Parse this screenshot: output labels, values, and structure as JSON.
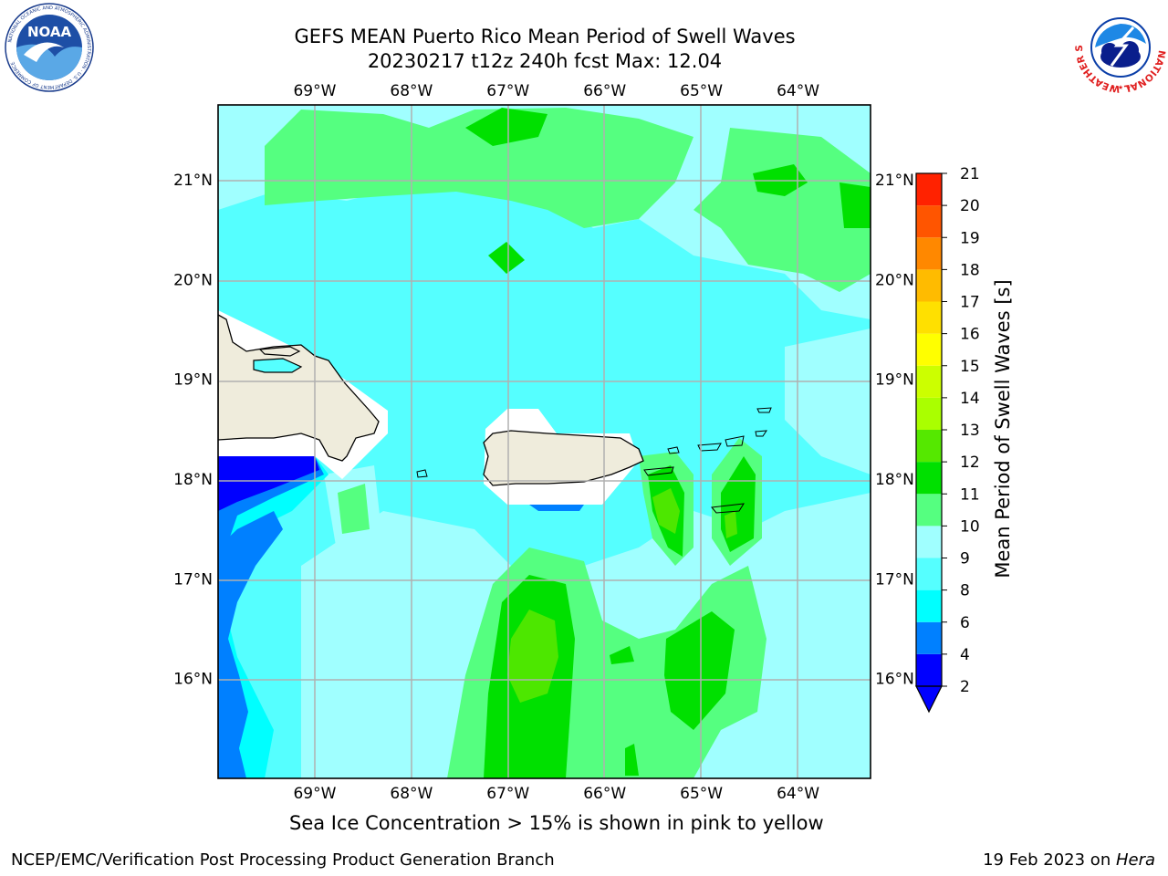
{
  "title": {
    "line1": "GEFS MEAN Puerto Rico Mean Period of Swell Waves",
    "line2": "20230217 t12z 240h fcst   Max: 12.04"
  },
  "axes": {
    "lon_labels": [
      "69°W",
      "68°W",
      "67°W",
      "66°W",
      "65°W",
      "64°W"
    ],
    "lat_labels": [
      "21°N",
      "20°N",
      "19°N",
      "18°N",
      "17°N",
      "16°N"
    ],
    "lon_values": [
      -69,
      -68,
      -67,
      -66,
      -65,
      -64
    ],
    "lat_values": [
      21,
      20,
      19,
      18,
      17,
      16
    ],
    "lon_range": [
      -70,
      -63.25
    ],
    "lat_range": [
      15,
      21.75
    ]
  },
  "colorbar": {
    "label": "Mean Period of Swell Waves [s]",
    "ticks": [
      "21",
      "20",
      "19",
      "18",
      "17",
      "16",
      "15",
      "14",
      "13",
      "12",
      "11",
      "10",
      "9",
      "8",
      "6",
      "4",
      "2"
    ],
    "levels": [
      2,
      4,
      6,
      8,
      9,
      10,
      11,
      12,
      13,
      14,
      15,
      16,
      17,
      18,
      19,
      20,
      21
    ],
    "colors": [
      "#0000ff",
      "#0080ff",
      "#00ffff",
      "#55ffff",
      "#a0ffff",
      "#55ff80",
      "#00e000",
      "#55e800",
      "#aaff00",
      "#ccff00",
      "#ffff00",
      "#ffe000",
      "#ffbb00",
      "#ff8800",
      "#ff5500",
      "#ff2200",
      "#ff0000"
    ],
    "under_color": "#0000ff"
  },
  "caption": "Sea Ice Concentration > 15% is shown in pink to yellow",
  "footer": {
    "left": "NCEP/EMC/Verification Post Processing Product Generation Branch",
    "right_date": "19 Feb 2023 on ",
    "right_host": "Hera"
  },
  "logos": {
    "noaa_text": "NOAA",
    "noaa_ring": "NATIONAL OCEANIC AND ATMOSPHERIC ADMINISTRATION · U.S. DEPARTMENT OF COMMERCE",
    "nws_ring": "NATIONAL WEATHER SERVICE"
  }
}
